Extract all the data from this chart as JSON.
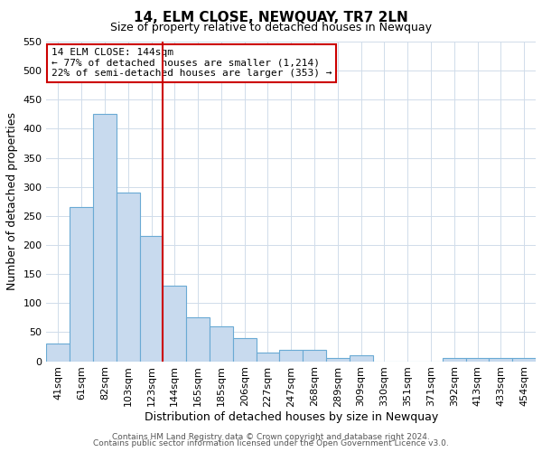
{
  "title": "14, ELM CLOSE, NEWQUAY, TR7 2LN",
  "subtitle": "Size of property relative to detached houses in Newquay",
  "xlabel": "Distribution of detached houses by size in Newquay",
  "ylabel": "Number of detached properties",
  "footer_line1": "Contains HM Land Registry data © Crown copyright and database right 2024.",
  "footer_line2": "Contains public sector information licensed under the Open Government Licence v3.0.",
  "bar_labels": [
    "41sqm",
    "61sqm",
    "82sqm",
    "103sqm",
    "123sqm",
    "144sqm",
    "165sqm",
    "185sqm",
    "206sqm",
    "227sqm",
    "247sqm",
    "268sqm",
    "289sqm",
    "309sqm",
    "330sqm",
    "351sqm",
    "371sqm",
    "392sqm",
    "413sqm",
    "433sqm",
    "454sqm"
  ],
  "bar_values": [
    30,
    265,
    425,
    290,
    215,
    130,
    75,
    60,
    40,
    15,
    20,
    20,
    5,
    10,
    0,
    0,
    0,
    5,
    5,
    5,
    5
  ],
  "bar_color": "#c8daee",
  "bar_edge_color": "#6aaad4",
  "marker_index": 5,
  "marker_color": "#cc0000",
  "annotation_title": "14 ELM CLOSE: 144sqm",
  "annotation_line1": "← 77% of detached houses are smaller (1,214)",
  "annotation_line2": "22% of semi-detached houses are larger (353) →",
  "annotation_box_color": "#ffffff",
  "annotation_box_edge_color": "#cc0000",
  "ylim": [
    0,
    550
  ],
  "yticks": [
    0,
    50,
    100,
    150,
    200,
    250,
    300,
    350,
    400,
    450,
    500,
    550
  ],
  "background_color": "#ffffff",
  "grid_color": "#d0dcea",
  "title_fontsize": 11,
  "subtitle_fontsize": 9,
  "axis_label_fontsize": 9,
  "tick_fontsize": 8,
  "annotation_fontsize": 8,
  "footer_fontsize": 6.5
}
